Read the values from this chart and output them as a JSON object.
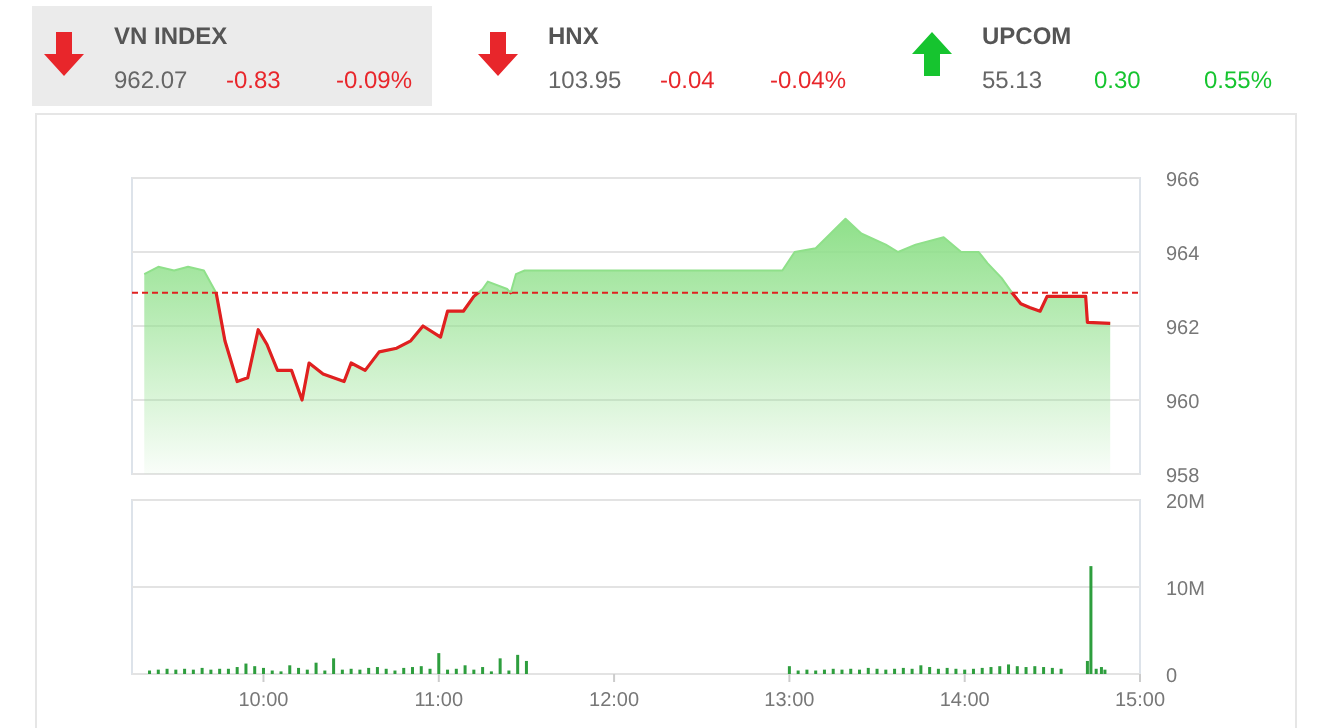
{
  "chart_data": [
    {
      "type": "other",
      "categories": [
        "VN INDEX",
        "HNX",
        "UPCOM"
      ],
      "colors": [
        "#e8262b",
        "#e8262b",
        "#16c42f"
      ],
      "annotations": [
        "962.07",
        "-0.83",
        "-0.09%",
        "103.95",
        "-0.04",
        "-0.04%",
        "55.13",
        "0.30",
        "0.55%"
      ]
    },
    {
      "type": "area",
      "xlim": [
        9.25,
        15
      ],
      "ylim": [
        958,
        966
      ],
      "yticks": [
        958,
        960,
        962,
        964,
        966
      ],
      "grid": "y",
      "tick_labels": "y",
      "series": [
        {
          "color": "#8fe08a",
          "x": [
            9.32,
            9.4,
            9.49,
            9.57,
            9.66,
            9.73,
            9.78,
            9.85,
            9.91,
            9.97,
            10.02,
            10.08,
            10.16,
            10.22,
            10.26,
            10.34,
            10.46,
            10.5,
            10.58,
            10.66,
            10.76,
            10.84,
            10.91,
            11.01,
            11.05,
            11.14,
            11.2,
            11.25,
            11.28,
            11.39,
            11.41,
            11.44,
            11.49,
            12.96,
            13.03,
            13.15,
            13.32,
            13.41,
            13.55,
            13.62,
            13.72,
            13.88,
            13.98,
            14.08,
            14.13,
            14.21,
            14.27,
            14.32,
            14.37,
            14.43,
            14.47,
            14.69,
            14.7,
            14.83
          ],
          "values": [
            963.4,
            963.6,
            963.5,
            963.6,
            963.5,
            962.9,
            961.6,
            960.5,
            960.6,
            961.9,
            961.5,
            960.8,
            960.8,
            960.0,
            961.0,
            960.7,
            960.5,
            961.0,
            960.8,
            961.3,
            961.4,
            961.6,
            962.0,
            961.7,
            962.4,
            962.4,
            962.8,
            963.0,
            963.2,
            963.0,
            962.9,
            963.4,
            963.5,
            963.5,
            964.0,
            964.1,
            964.9,
            964.5,
            964.2,
            964.0,
            964.2,
            964.4,
            964.0,
            964.0,
            963.7,
            963.3,
            962.9,
            962.6,
            962.5,
            962.4,
            962.8,
            962.8,
            962.1,
            962.07
          ]
        }
      ],
      "ref_lines": [
        {
          "axis": "y",
          "value": 962.9,
          "color": "#e02020",
          "line_style": "dashed"
        }
      ]
    },
    {
      "type": "bar",
      "xlim": [
        9.25,
        15
      ],
      "ylim": [
        0,
        20
      ],
      "yticks": [
        0,
        {
          "value": 10,
          "label": "10M"
        },
        {
          "value": 20,
          "label": "20M"
        }
      ],
      "xticks": [
        {
          "value": 10,
          "label": "10:00"
        },
        {
          "value": 11,
          "label": "11:00"
        },
        {
          "value": 12,
          "label": "12:00"
        },
        {
          "value": 13,
          "label": "13:00"
        },
        {
          "value": 14,
          "label": "14:00"
        },
        {
          "value": 15,
          "label": "15:00"
        }
      ],
      "grid": "y",
      "series": [
        {
          "color": "#2e9e3e",
          "x": [
            9.35,
            9.4,
            9.45,
            9.5,
            9.55,
            9.6,
            9.65,
            9.7,
            9.75,
            9.8,
            9.85,
            9.9,
            9.95,
            10,
            10.05,
            10.1,
            10.15,
            10.2,
            10.25,
            10.3,
            10.35,
            10.4,
            10.45,
            10.5,
            10.55,
            10.6,
            10.65,
            10.7,
            10.75,
            10.8,
            10.85,
            10.9,
            10.95,
            11,
            11.05,
            11.1,
            11.15,
            11.2,
            11.25,
            11.3,
            11.35,
            11.4,
            11.45,
            11.5,
            13,
            13.05,
            13.1,
            13.15,
            13.2,
            13.25,
            13.3,
            13.35,
            13.4,
            13.45,
            13.5,
            13.55,
            13.6,
            13.65,
            13.7,
            13.75,
            13.8,
            13.85,
            13.9,
            13.95,
            14,
            14.05,
            14.1,
            14.15,
            14.2,
            14.25,
            14.3,
            14.35,
            14.4,
            14.45,
            14.5,
            14.55,
            14.7,
            14.72,
            14.75,
            14.78,
            14.8
          ],
          "values": [
            0.4,
            0.5,
            0.6,
            0.5,
            0.6,
            0.5,
            0.7,
            0.5,
            0.6,
            0.6,
            0.8,
            1.2,
            0.9,
            0.7,
            0.4,
            0.3,
            1.0,
            0.7,
            0.5,
            1.3,
            0.4,
            1.8,
            0.5,
            0.6,
            0.5,
            0.7,
            0.8,
            0.6,
            0.4,
            0.7,
            0.8,
            0.9,
            0.6,
            2.4,
            0.5,
            0.6,
            1.0,
            0.5,
            0.8,
            0.3,
            1.8,
            0.4,
            2.2,
            1.5,
            0.9,
            0.4,
            0.5,
            0.4,
            0.5,
            0.6,
            0.5,
            0.6,
            0.5,
            0.7,
            0.6,
            0.5,
            0.6,
            0.7,
            0.6,
            1.0,
            0.8,
            0.6,
            0.7,
            0.6,
            0.5,
            0.6,
            0.7,
            0.8,
            0.9,
            1.1,
            0.9,
            0.8,
            0.9,
            0.8,
            0.7,
            0.6,
            1.5,
            12.4,
            0.6,
            0.8,
            0.5
          ]
        }
      ]
    }
  ]
}
